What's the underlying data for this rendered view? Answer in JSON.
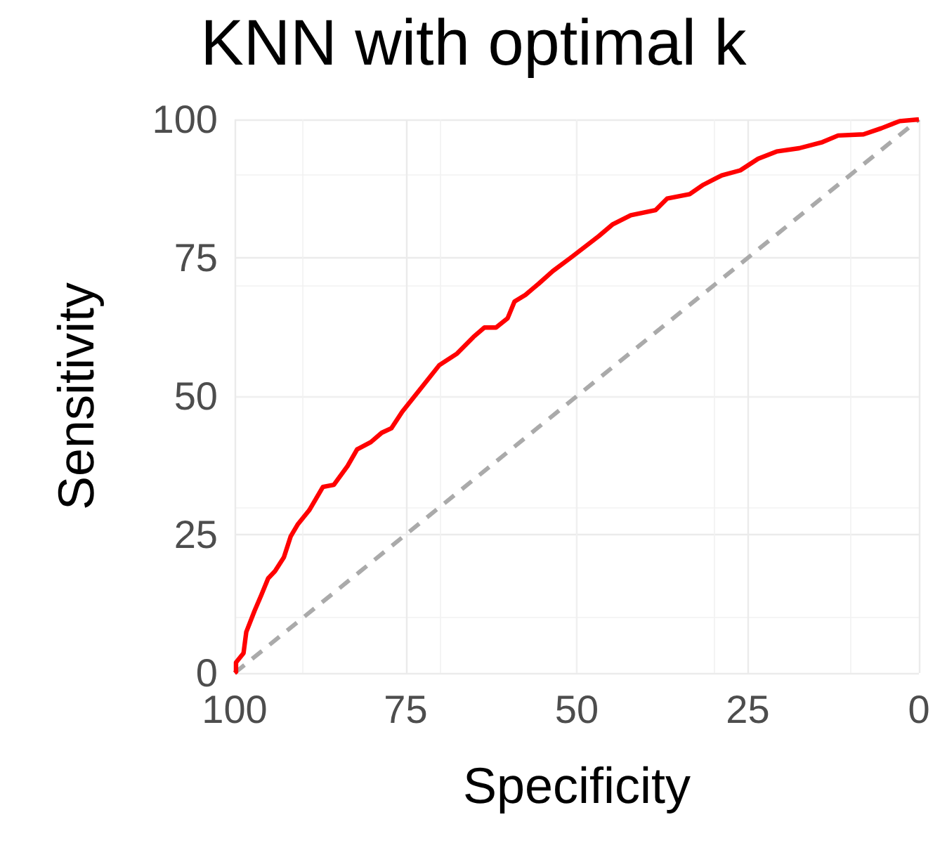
{
  "chart_data": {
    "type": "line",
    "title": "KNN with optimal k",
    "xlabel": "Specificity",
    "ylabel": "Sensitivity",
    "xlim": [
      100,
      0
    ],
    "xticks": [
      100,
      75,
      50,
      25,
      0
    ],
    "ylim": [
      0,
      100
    ],
    "yticks": [
      0,
      25,
      50,
      75,
      100
    ],
    "grid": true,
    "series": [
      {
        "color": "#ff0000",
        "line_style": "solid",
        "x": [
          100,
          99.8,
          99.8,
          98.7,
          98.3,
          97.1,
          96.1,
          95.1,
          94.1,
          92.8,
          91.8,
          90.8,
          89.1,
          87.1,
          85.5,
          83.5,
          82.1,
          80.1,
          78.5,
          77.1,
          75.5,
          72.8,
          70.1,
          67.5,
          65.1,
          63.5,
          61.8,
          60.1,
          59.1,
          57.5,
          55.5,
          53.5,
          50.8,
          46.8,
          44.8,
          42.1,
          38.5,
          36.8,
          33.5,
          31.5,
          28.8,
          26.1,
          23.5,
          20.8,
          17.5,
          14.1,
          11.8,
          8.1,
          5.5,
          2.8,
          0
        ],
        "values": [
          0,
          0.2,
          1.9,
          3.6,
          7.4,
          11.2,
          14.1,
          17.1,
          18.4,
          20.9,
          24.7,
          26.8,
          29.4,
          33.6,
          34.0,
          37.4,
          40.4,
          41.7,
          43.4,
          44.2,
          47.2,
          51.4,
          55.6,
          57.7,
          60.7,
          62.4,
          62.4,
          64.1,
          67.1,
          68.3,
          70.4,
          72.6,
          75.1,
          78.9,
          81.0,
          82.7,
          83.6,
          85.7,
          86.5,
          88.2,
          89.9,
          90.8,
          92.9,
          94.2,
          94.8,
          95.9,
          97.1,
          97.3,
          98.4,
          99.7,
          100
        ]
      },
      {
        "color": "#aaaaaa",
        "line_style": "dashed",
        "x": [
          100,
          0
        ],
        "values": [
          0,
          100
        ]
      }
    ]
  }
}
